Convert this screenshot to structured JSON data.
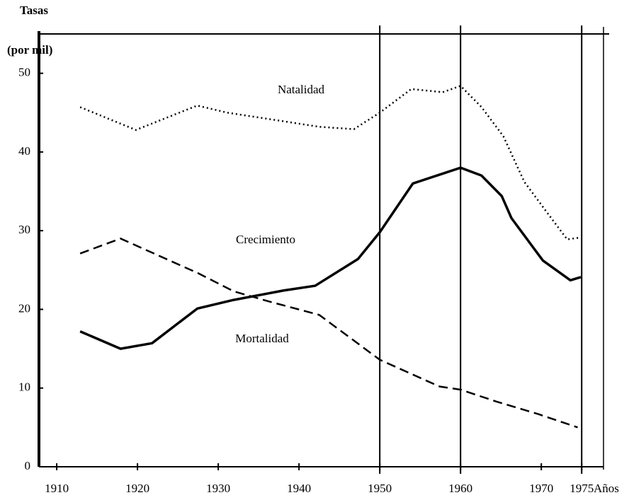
{
  "chart_data": {
    "type": "line",
    "y_label": "Tasas",
    "y_unit": "(por mil)",
    "x_label": "Años",
    "xlim": [
      1907.8,
      1977.7
    ],
    "ylim": [
      0,
      55
    ],
    "xticks": [
      1910,
      1920,
      1930,
      1940,
      1950,
      1960,
      1970,
      1975
    ],
    "yticks": [
      0,
      10,
      20,
      30,
      40,
      50
    ],
    "reference_lines": [
      1950,
      1960,
      1975
    ],
    "series": [
      {
        "name": "Natalidad",
        "color": "#000000",
        "dash": "dotted",
        "x": [
          1912.9,
          1919.8,
          1927.4,
          1931.1,
          1938.1,
          1942.5,
          1946.8,
          1950,
          1953.9,
          1957.8,
          1960,
          1962.6,
          1965.3,
          1967.9,
          1970.5,
          1973.2,
          1974.7
        ],
        "values": [
          45.7,
          42.8,
          45.9,
          45.0,
          43.9,
          43.2,
          42.9,
          45.0,
          48.0,
          47.6,
          48.4,
          45.7,
          42.0,
          36.2,
          32.6,
          28.9,
          29.1
        ]
      },
      {
        "name": "Crecimiento",
        "color": "#000000",
        "dash": "solid",
        "x": [
          1912.9,
          1917.9,
          1921.8,
          1927.4,
          1931.9,
          1938.1,
          1942,
          1947.3,
          1950,
          1954.1,
          1960,
          1962.6,
          1965.1,
          1966.3,
          1970.2,
          1973.6,
          1974.9
        ],
        "values": [
          17.2,
          15.0,
          15.7,
          20.1,
          21.2,
          22.4,
          23.0,
          26.4,
          29.8,
          36.0,
          38.0,
          37.0,
          34.4,
          31.6,
          26.2,
          23.7,
          24.1
        ]
      },
      {
        "name": "Mortalidad",
        "color": "#000000",
        "dash": "dashed",
        "x": [
          1912.9,
          1917.9,
          1924,
          1927.5,
          1931.9,
          1936.3,
          1942.5,
          1950,
          1953.9,
          1957.4,
          1960,
          1964.4,
          1969.6,
          1974.5
        ],
        "values": [
          27.1,
          29.0,
          26.2,
          24.6,
          22.3,
          21.0,
          19.3,
          13.6,
          11.8,
          10.2,
          9.8,
          8.3,
          6.7,
          5.0
        ]
      }
    ]
  }
}
